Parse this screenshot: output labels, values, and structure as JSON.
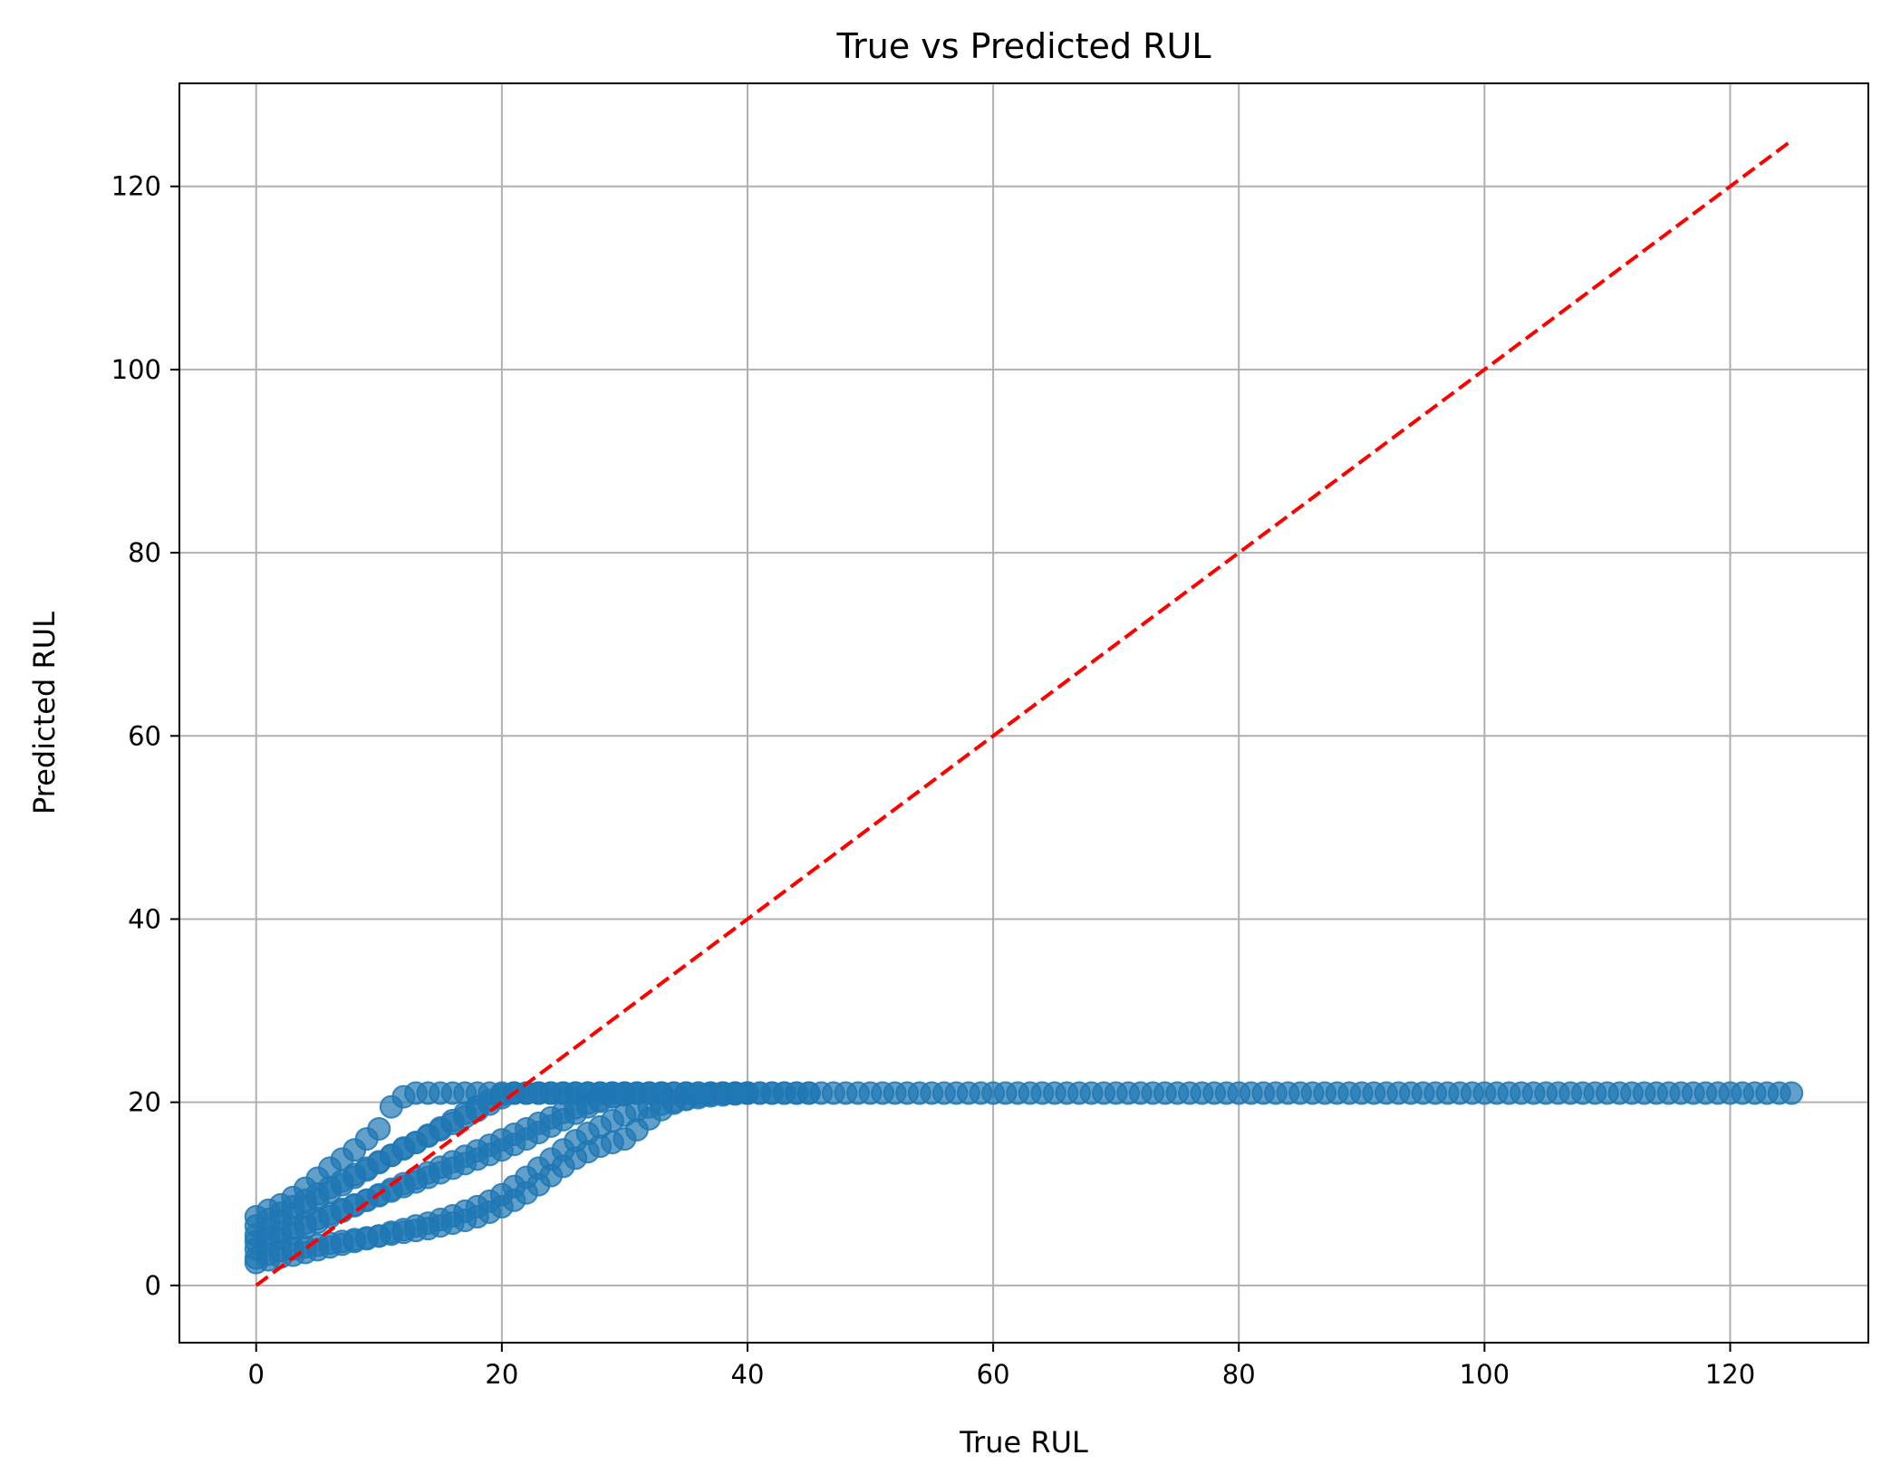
{
  "chart_data": {
    "type": "scatter",
    "title": "True vs Predicted RUL",
    "xlabel": "True RUL",
    "ylabel": "Predicted RUL",
    "xlim": [
      -6.25,
      131.25
    ],
    "ylim": [
      -6.25,
      131.25
    ],
    "xticks": [
      "0",
      "20",
      "40",
      "60",
      "80",
      "100",
      "120"
    ],
    "yticks": [
      "0",
      "20",
      "40",
      "60",
      "80",
      "100",
      "120"
    ],
    "grid": true,
    "legend": "none",
    "point_color": "#1f77b4",
    "point_opacity": 0.7,
    "ideal_line": {
      "x": [
        0,
        125
      ],
      "y": [
        0,
        125
      ],
      "color": "#ff0000",
      "style": "dashed"
    },
    "series": [
      {
        "x": [
          0,
          1,
          2,
          3,
          4,
          5,
          6,
          7,
          8,
          9,
          10,
          11,
          12,
          13,
          14,
          15,
          16,
          17,
          18,
          19,
          20,
          21,
          22,
          23,
          24,
          25,
          26,
          27,
          28,
          29,
          30,
          31,
          32,
          33,
          34,
          35,
          36,
          37,
          38,
          39,
          40
        ],
        "y": [
          7.5,
          8.2,
          8.8,
          9.6,
          10.6,
          11.7,
          12.8,
          13.8,
          14.8,
          16.0,
          17.1,
          19.5,
          20.6,
          21.0,
          21.0,
          21.0,
          21.0,
          21.0,
          21.0,
          21.0,
          21.0,
          21.0,
          21.0,
          21.0,
          21.0,
          21.0,
          21.0,
          21.0,
          21.0,
          21.0,
          21.0,
          21.0,
          21.0,
          21.0,
          21.0,
          21.0,
          21.0,
          21.0,
          21.0,
          21.0,
          21.0
        ]
      },
      {
        "x": [
          0,
          1,
          2,
          3,
          4,
          5,
          6,
          7,
          8,
          9,
          10,
          11,
          12,
          13,
          14,
          15,
          16,
          17,
          18,
          19,
          20,
          21,
          22,
          23,
          24,
          25,
          26,
          27,
          28,
          29,
          30
        ],
        "y": [
          5.5,
          6.2,
          7.0,
          7.8,
          8.6,
          9.4,
          10.2,
          11.0,
          11.8,
          12.6,
          13.4,
          14.2,
          15.0,
          15.6,
          16.4,
          17.2,
          18.0,
          18.8,
          19.5,
          20.2,
          20.8,
          21.0,
          21.0,
          21.0,
          21.0,
          21.0,
          21.0,
          21.0,
          21.0,
          21.0,
          21.0
        ]
      },
      {
        "x": [
          0,
          1,
          2,
          3,
          4,
          5,
          6,
          7,
          8,
          9,
          10,
          11,
          12,
          13,
          14,
          15,
          16,
          17,
          18,
          19,
          20,
          21,
          22,
          23,
          24,
          25,
          26,
          27,
          28,
          29,
          30,
          31,
          32,
          33,
          34,
          35
        ],
        "y": [
          4.0,
          4.5,
          5.1,
          5.7,
          6.3,
          6.9,
          7.5,
          8.1,
          8.7,
          9.3,
          9.9,
          10.5,
          11.1,
          11.7,
          12.3,
          12.9,
          13.5,
          14.1,
          14.7,
          15.3,
          15.9,
          16.5,
          17.1,
          17.7,
          18.3,
          18.9,
          19.4,
          19.9,
          20.3,
          20.6,
          20.8,
          21.0,
          21.0,
          21.0,
          21.0,
          21.0
        ]
      },
      {
        "x": [
          0,
          1,
          2,
          3,
          4,
          5,
          6,
          7,
          8,
          9,
          10,
          11,
          12,
          13,
          14,
          15,
          16,
          17,
          18,
          19,
          20,
          21,
          22,
          23,
          24,
          25,
          26,
          27,
          28,
          29,
          30,
          31,
          32,
          33,
          34,
          35,
          36,
          37,
          38,
          39,
          40,
          41,
          42,
          43,
          44,
          45
        ],
        "y": [
          2.5,
          2.8,
          3.1,
          3.3,
          3.6,
          3.9,
          4.2,
          4.5,
          4.8,
          5.1,
          5.4,
          5.8,
          6.1,
          6.5,
          6.8,
          7.2,
          7.6,
          8.1,
          8.6,
          9.2,
          9.9,
          10.8,
          11.8,
          12.8,
          13.8,
          14.8,
          15.8,
          16.6,
          17.3,
          18.0,
          18.6,
          19.1,
          19.5,
          19.8,
          20.1,
          20.3,
          20.5,
          20.7,
          20.8,
          20.9,
          21.0,
          21.0,
          21.0,
          21.0,
          21.0,
          21.0
        ]
      },
      {
        "x": [
          0,
          1,
          2,
          3,
          4,
          5,
          6,
          7,
          8,
          9,
          10,
          11,
          12,
          13,
          14,
          15,
          16,
          17,
          18,
          19,
          20,
          21,
          22,
          23,
          24,
          25,
          26,
          27,
          28,
          29,
          30,
          31,
          32,
          33,
          34,
          35,
          36,
          37,
          38,
          39,
          40
        ],
        "y": [
          3.0,
          3.4,
          3.8,
          4.0,
          4.2,
          4.4,
          4.6,
          4.8,
          5.0,
          5.2,
          5.4,
          5.6,
          5.8,
          6.0,
          6.2,
          6.5,
          6.8,
          7.1,
          7.5,
          8.0,
          8.6,
          9.3,
          10.1,
          11.0,
          12.0,
          13.0,
          13.9,
          14.6,
          15.2,
          15.6,
          16.0,
          17.0,
          18.2,
          19.2,
          19.9,
          20.4,
          20.7,
          20.9,
          21.0,
          21.0,
          21.0
        ]
      },
      {
        "x": [
          0,
          1,
          2,
          3,
          4,
          5,
          6,
          7,
          8,
          9,
          10,
          11,
          12,
          13,
          14,
          15,
          16,
          17,
          18,
          19,
          20,
          21,
          22,
          23,
          24,
          25,
          26,
          27,
          28,
          29,
          30
        ],
        "y": [
          6.5,
          7.2,
          7.9,
          8.6,
          9.3,
          10.0,
          10.7,
          11.4,
          12.1,
          12.8,
          13.5,
          14.2,
          14.9,
          15.6,
          16.3,
          17.0,
          17.7,
          18.4,
          19.1,
          19.8,
          20.5,
          21.0,
          21.0,
          21.0,
          21.0,
          21.0,
          21.0,
          21.0,
          21.0,
          21.0,
          21.0
        ]
      },
      {
        "x": [
          0,
          1,
          2,
          3,
          4,
          5,
          6,
          7,
          8,
          9,
          10,
          11,
          12,
          13,
          14,
          15,
          16,
          17,
          18,
          19,
          20,
          21,
          22,
          23,
          24,
          25,
          26,
          27,
          28,
          29,
          30,
          31,
          32,
          33
        ],
        "y": [
          4.8,
          5.3,
          5.8,
          6.3,
          6.8,
          7.3,
          7.8,
          8.3,
          8.8,
          9.3,
          9.8,
          10.3,
          10.8,
          11.3,
          11.8,
          12.3,
          12.8,
          13.3,
          13.8,
          14.3,
          14.8,
          15.4,
          16.0,
          16.7,
          17.4,
          18.1,
          18.8,
          19.5,
          20.1,
          20.6,
          20.9,
          21.0,
          21.0,
          21.0
        ]
      },
      {
        "x_start": 35,
        "x_end": 125,
        "x_step": 1,
        "y_const": 21.0
      }
    ]
  }
}
